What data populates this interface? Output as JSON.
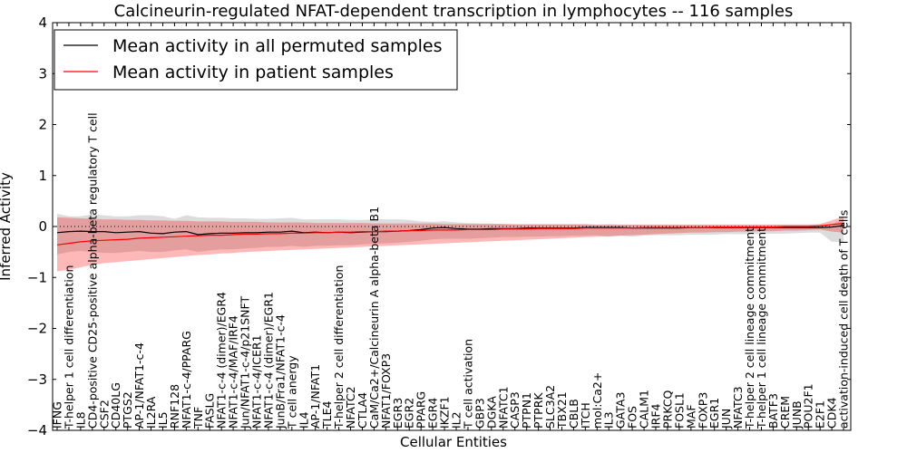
{
  "chart_data": {
    "type": "line",
    "title": "Calcineurin-regulated NFAT-dependent transcription in lymphocytes -- 116 samples",
    "xlabel": "Cellular Entities",
    "ylabel": "Inferred Activity",
    "ylim": [
      -4,
      4
    ],
    "yticks": [
      -4,
      -3,
      -2,
      -1,
      0,
      1,
      2,
      3,
      4
    ],
    "ytick_labels": [
      "−4",
      "−3",
      "−2",
      "−1",
      "0",
      "1",
      "2",
      "3",
      "4"
    ],
    "grid": false,
    "legend_position": "top-left",
    "categories": [
      "IFNG",
      "T-helper 1 cell differentiation",
      "IL8",
      "CD4-positive CD25-positive alpha-beta regulatory T cell",
      "CSF2",
      "CD40LG",
      "PTGS2",
      "AP-1/NFAT1-c-4",
      "IL2RA",
      "IL5",
      "RNF128",
      "NFAT1-c-4/PPARG",
      "TNF",
      "FASLG",
      "NFAT1-c-4 (dimer)/EGR4",
      "NFAT1-c-4/MAF/IRF4",
      "Jun/NFAT1-c-4/p21SNFT",
      "NFAT1-c-4/ICER1",
      "NFAT1-c-4 (dimer)/EGR1",
      "JunB/Fra1/NFAT1-c-4",
      "T cell anergy",
      "IL4",
      "AP-1/NFAT1",
      "TLE4",
      "T-helper 2 cell differentiation",
      "NFATC2",
      "CTLA4",
      "CaM/Ca2+/Calcineurin A alpha-beta B1",
      "NFAT1/FOXP3",
      "EGR3",
      "EGR2",
      "PPARG",
      "EGR4",
      "IKZF1",
      "IL2",
      "T cell activation",
      "GBP3",
      "DGKA",
      "NFATC1",
      "CASP3",
      "PTPN1",
      "PTPRK",
      "SLC3A2",
      "TBX21",
      "CBLB",
      "ITCH",
      "mol:Ca2+",
      "IL3",
      "GATA3",
      "FOS",
      "CALM1",
      "IRF4",
      "PRKCQ",
      "FOSL1",
      "MAF",
      "FOXP3",
      "EGR1",
      "JUN",
      "NFATC3",
      "T-helper 2 cell lineage commitment",
      "T-helper 1 cell lineage commitment",
      "BATF3",
      "CREM",
      "JUNB",
      "POU2F1",
      "E2F1",
      "CDK4",
      "activation-induced cell death of T cells"
    ],
    "series": [
      {
        "name": "Mean activity in all permuted samples",
        "color": "#000000",
        "values": [
          -0.12,
          -0.1,
          -0.09,
          -0.1,
          -0.1,
          -0.12,
          -0.11,
          -0.1,
          -0.13,
          -0.14,
          -0.11,
          -0.1,
          -0.16,
          -0.14,
          -0.13,
          -0.13,
          -0.12,
          -0.12,
          -0.11,
          -0.11,
          -0.09,
          -0.12,
          -0.11,
          -0.12,
          -0.11,
          -0.12,
          -0.11,
          -0.1,
          -0.1,
          -0.09,
          -0.08,
          -0.06,
          -0.03,
          -0.02,
          -0.04,
          -0.05,
          -0.05,
          -0.04,
          -0.04,
          -0.04,
          -0.03,
          -0.03,
          -0.03,
          -0.03,
          -0.03,
          -0.02,
          -0.02,
          -0.02,
          -0.02,
          -0.03,
          -0.03,
          -0.03,
          -0.03,
          -0.03,
          -0.02,
          -0.02,
          -0.02,
          -0.02,
          -0.02,
          -0.02,
          -0.02,
          -0.02,
          -0.02,
          -0.02,
          -0.02,
          -0.02,
          -0.01,
          0.02
        ],
        "band_low": [
          -0.55,
          -0.5,
          -0.48,
          -0.5,
          -0.52,
          -0.52,
          -0.5,
          -0.48,
          -0.5,
          -0.5,
          -0.47,
          -0.45,
          -0.5,
          -0.47,
          -0.45,
          -0.45,
          -0.43,
          -0.42,
          -0.4,
          -0.4,
          -0.38,
          -0.4,
          -0.38,
          -0.38,
          -0.37,
          -0.37,
          -0.35,
          -0.34,
          -0.33,
          -0.32,
          -0.3,
          -0.28,
          -0.25,
          -0.24,
          -0.24,
          -0.24,
          -0.23,
          -0.22,
          -0.21,
          -0.21,
          -0.2,
          -0.2,
          -0.19,
          -0.19,
          -0.18,
          -0.18,
          -0.17,
          -0.2,
          -0.18,
          -0.2,
          -0.18,
          -0.17,
          -0.17,
          -0.17,
          -0.16,
          -0.16,
          -0.16,
          -0.15,
          -0.15,
          -0.15,
          -0.15,
          -0.14,
          -0.14,
          -0.13,
          -0.12,
          -0.12,
          -0.3,
          -0.3
        ],
        "band_high": [
          0.25,
          0.2,
          0.2,
          0.24,
          0.22,
          0.2,
          0.2,
          0.22,
          0.22,
          0.2,
          0.15,
          0.22,
          0.18,
          0.17,
          0.17,
          0.16,
          0.16,
          0.15,
          0.15,
          0.16,
          0.17,
          0.14,
          0.14,
          0.14,
          0.14,
          0.13,
          0.13,
          0.14,
          0.14,
          0.14,
          0.13,
          0.1,
          0.09,
          0.1,
          0.08,
          0.07,
          0.06,
          0.06,
          0.05,
          0.05,
          0.05,
          0.05,
          0.05,
          0.05,
          0.05,
          0.05,
          0.04,
          0.05,
          0.04,
          0.04,
          0.04,
          0.04,
          0.04,
          0.04,
          0.04,
          0.04,
          0.04,
          0.04,
          0.04,
          0.04,
          0.04,
          0.04,
          0.04,
          0.04,
          0.04,
          0.04,
          0.04,
          0.15
        ]
      },
      {
        "name": "Mean activity in patient samples",
        "color": "#ff0000",
        "values": [
          -0.36,
          -0.33,
          -0.3,
          -0.28,
          -0.27,
          -0.26,
          -0.25,
          -0.23,
          -0.22,
          -0.21,
          -0.2,
          -0.19,
          -0.18,
          -0.17,
          -0.17,
          -0.16,
          -0.15,
          -0.15,
          -0.14,
          -0.14,
          -0.13,
          -0.13,
          -0.12,
          -0.12,
          -0.11,
          -0.11,
          -0.1,
          -0.1,
          -0.09,
          -0.09,
          -0.08,
          -0.08,
          -0.07,
          -0.07,
          -0.07,
          -0.06,
          -0.06,
          -0.06,
          -0.05,
          -0.05,
          -0.05,
          -0.04,
          -0.04,
          -0.04,
          -0.04,
          -0.03,
          -0.03,
          -0.03,
          -0.03,
          -0.03,
          -0.02,
          -0.02,
          -0.02,
          -0.02,
          -0.02,
          -0.02,
          -0.01,
          -0.01,
          -0.01,
          -0.01,
          -0.01,
          -0.01,
          0.0,
          0.0,
          0.0,
          0.01,
          0.04,
          0.06
        ],
        "band_low": [
          -0.88,
          -0.85,
          -0.8,
          -0.75,
          -0.72,
          -0.7,
          -0.68,
          -0.66,
          -0.64,
          -0.62,
          -0.6,
          -0.58,
          -0.56,
          -0.55,
          -0.53,
          -0.52,
          -0.5,
          -0.49,
          -0.48,
          -0.47,
          -0.46,
          -0.45,
          -0.44,
          -0.43,
          -0.42,
          -0.41,
          -0.4,
          -0.39,
          -0.38,
          -0.37,
          -0.36,
          -0.35,
          -0.34,
          -0.33,
          -0.32,
          -0.31,
          -0.3,
          -0.29,
          -0.28,
          -0.27,
          -0.26,
          -0.25,
          -0.24,
          -0.23,
          -0.22,
          -0.21,
          -0.2,
          -0.19,
          -0.18,
          -0.17,
          -0.16,
          -0.15,
          -0.14,
          -0.13,
          -0.12,
          -0.12,
          -0.11,
          -0.11,
          -0.1,
          -0.1,
          -0.09,
          -0.09,
          -0.08,
          -0.08,
          -0.07,
          -0.06,
          -0.1,
          -0.12
        ],
        "band_high": [
          0.18,
          0.17,
          0.16,
          0.15,
          0.14,
          0.14,
          0.13,
          0.13,
          0.12,
          0.12,
          0.11,
          0.11,
          0.1,
          0.1,
          0.1,
          0.09,
          0.09,
          0.09,
          0.08,
          0.08,
          0.08,
          0.08,
          0.07,
          0.07,
          0.07,
          0.07,
          0.07,
          0.06,
          0.06,
          0.06,
          0.06,
          0.06,
          0.06,
          0.05,
          0.05,
          0.05,
          0.05,
          0.05,
          0.05,
          0.04,
          0.04,
          0.04,
          0.04,
          0.04,
          0.04,
          0.04,
          0.03,
          0.03,
          0.03,
          0.03,
          0.03,
          0.03,
          0.03,
          0.03,
          0.03,
          0.03,
          0.03,
          0.03,
          0.03,
          0.03,
          0.03,
          0.03,
          0.03,
          0.03,
          0.03,
          0.05,
          0.12,
          0.2
        ]
      }
    ]
  }
}
